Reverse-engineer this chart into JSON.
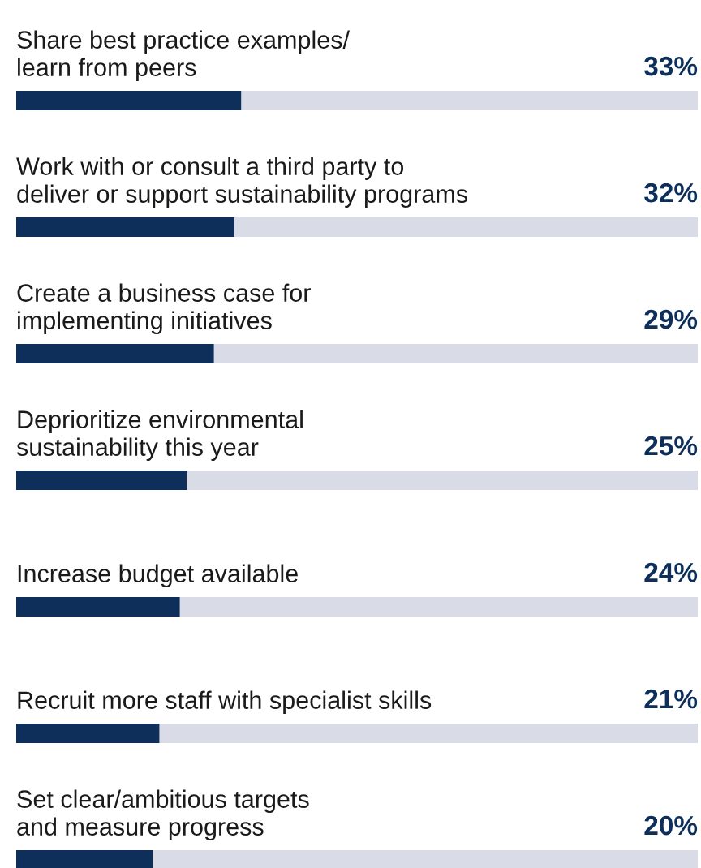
{
  "chart_data": {
    "type": "bar",
    "orientation": "horizontal",
    "categories": [
      "Share best practice examples/\nlearn from peers",
      "Work with or consult a third party to\ndeliver or support sustainability programs",
      "Create a business case for\nimplementing initiatives",
      "Deprioritize environmental\nsustainability this year",
      "Increase budget available",
      "Recruit more staff with specialist skills",
      "Set clear/ambitious targets\nand measure progress"
    ],
    "values": [
      33,
      32,
      29,
      25,
      24,
      21,
      20
    ],
    "value_labels": [
      "33%",
      "32%",
      "29%",
      "25%",
      "24%",
      "21%",
      "20%"
    ],
    "color": "#0e2f5a",
    "xlim": [
      0,
      100
    ]
  }
}
